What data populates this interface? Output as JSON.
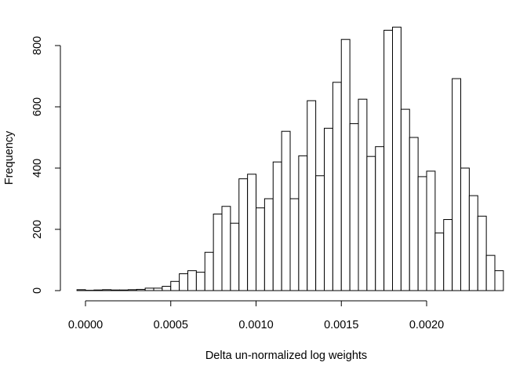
{
  "chart_data": {
    "type": "bar",
    "subtype": "histogram",
    "title": "",
    "xlabel": "Delta un-normalized log weights",
    "ylabel": "Frequency",
    "xlim": [
      -5e-05,
      0.0024
    ],
    "ylim": [
      0,
      870
    ],
    "x_ticks": [
      0.0,
      0.0005,
      0.001,
      0.0015,
      0.002
    ],
    "x_tick_labels": [
      "0.0000",
      "0.0005",
      "0.0010",
      "0.0015",
      "0.0020"
    ],
    "y_ticks": [
      0,
      200,
      400,
      600,
      800
    ],
    "y_tick_labels": [
      "0",
      "200",
      "400",
      "600",
      "800"
    ],
    "bin_width": 5e-05,
    "bin_start": -5e-05,
    "values": [
      3,
      1,
      2,
      3,
      2,
      2,
      3,
      4,
      8,
      8,
      14,
      30,
      55,
      65,
      60,
      125,
      250,
      275,
      220,
      365,
      380,
      270,
      300,
      420,
      520,
      300,
      440,
      620,
      375,
      530,
      680,
      820,
      545,
      625,
      438,
      470,
      850,
      860,
      592,
      500,
      372,
      390,
      188,
      232,
      692,
      400,
      310,
      243,
      115,
      65
    ],
    "grid": false,
    "legend": "none"
  }
}
